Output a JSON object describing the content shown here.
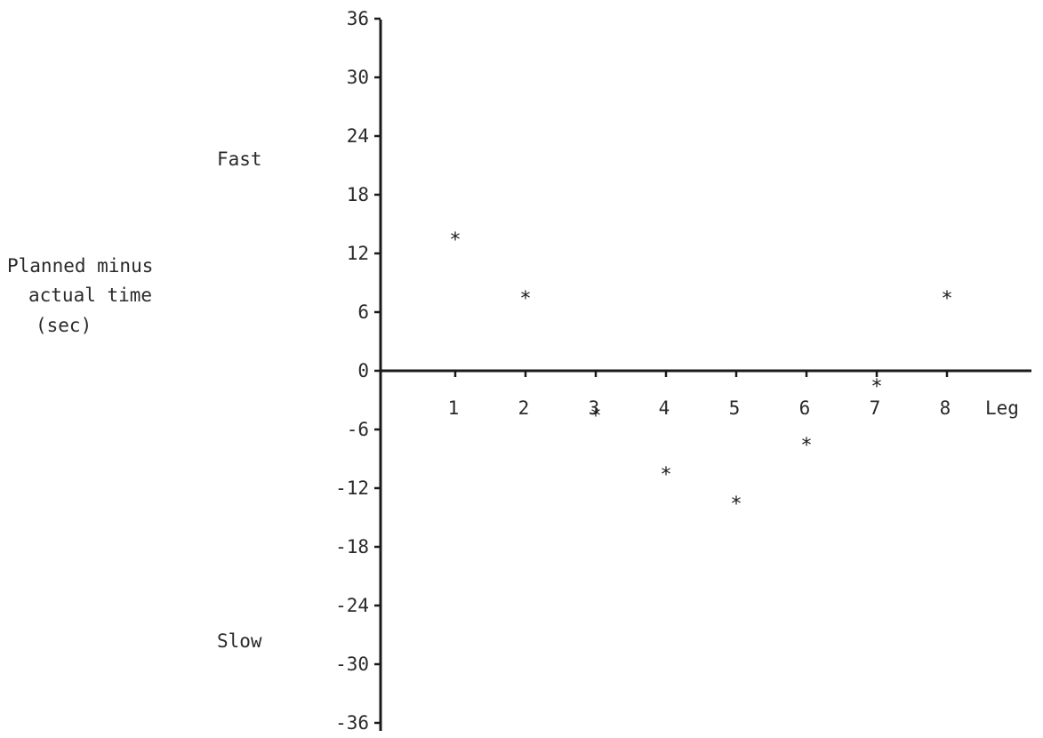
{
  "chart_data": {
    "type": "scatter",
    "title": "",
    "xlabel": "Leg",
    "ylabel": [
      "Planned minus",
      "actual time",
      "(sec)"
    ],
    "annotations": {
      "upper": "Fast",
      "lower": "Slow"
    },
    "x_ticks": [
      1,
      2,
      3,
      4,
      5,
      6,
      7,
      8
    ],
    "y_ticks": [
      36,
      30,
      24,
      18,
      12,
      6,
      0,
      -6,
      -12,
      -18,
      -24,
      -30,
      -36
    ],
    "xlim": [
      0,
      8
    ],
    "ylim": [
      -36,
      36
    ],
    "grid": false,
    "marker": "*",
    "series": [
      {
        "x": [
          1,
          2,
          3,
          4,
          5,
          6,
          7,
          8
        ],
        "y": [
          14,
          8,
          -4,
          -10,
          -13,
          -7,
          -1,
          8
        ]
      }
    ]
  }
}
